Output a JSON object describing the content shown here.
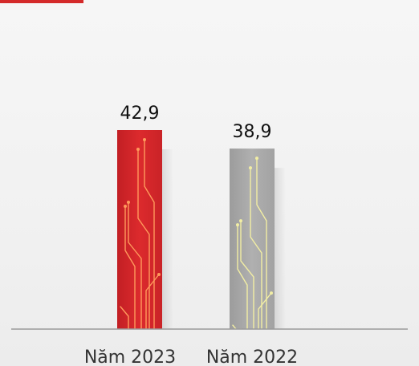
{
  "chart_data": {
    "type": "bar",
    "categories": [
      "Năm 2023",
      "Năm 2022"
    ],
    "values": [
      42.9,
      38.9
    ],
    "value_labels": [
      "42,9",
      "38,9"
    ],
    "colors": [
      "#d8282b",
      "#a6a6a6"
    ],
    "circuit_colors": [
      "#ff9a5c",
      "#f2eea4"
    ],
    "axis_color": "#9a9a9a",
    "grid": false,
    "legend": "none"
  }
}
